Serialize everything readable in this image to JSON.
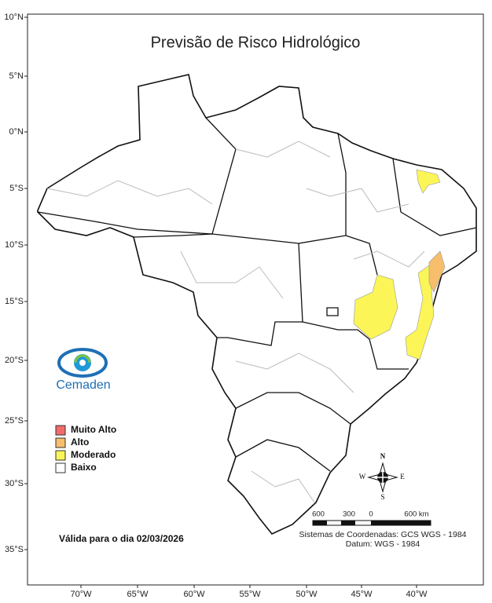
{
  "title": "Previsão de Risco Hidrológico",
  "latitude_labels": [
    "10°N",
    "5°N",
    "0°N",
    "5°S",
    "10°S",
    "15°S",
    "20°S",
    "25°S",
    "30°S",
    "35°S"
  ],
  "longitude_labels": [
    "70°W",
    "65°W",
    "60°W",
    "55°W",
    "50°W",
    "45°W",
    "40°W"
  ],
  "logo": "Cemaden",
  "legend": [
    {
      "label": "Muito Alto",
      "color": "#f26b6b"
    },
    {
      "label": "Alto",
      "color": "#f7be6b"
    },
    {
      "label": "Moderado",
      "color": "#fbf558"
    },
    {
      "label": "Baixo",
      "color": "#ffffff"
    }
  ],
  "validity": "Válida para o dia 02/03/2026",
  "scale_bar": {
    "labels": [
      "600",
      "300",
      "0",
      "600 km"
    ]
  },
  "compass": {
    "north": "N",
    "east": "E",
    "south": "S",
    "west": "W"
  },
  "coordinate_system": "Sistemas de Coordenadas: GCS WGS - 1984",
  "datum": "Datum: WGS - 1984"
}
